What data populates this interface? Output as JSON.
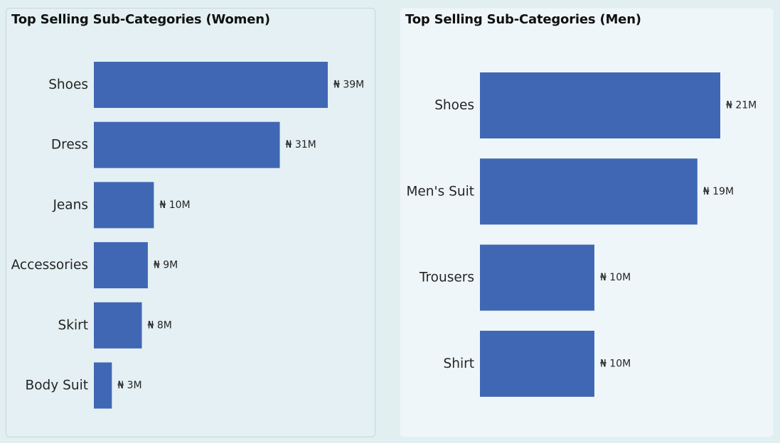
{
  "chart_data": [
    {
      "type": "bar",
      "orientation": "horizontal",
      "title": "Top Selling Sub-Categories (Women)",
      "categories": [
        "Shoes",
        "Dress",
        "Jeans",
        "Accessories",
        "Skirt",
        "Body Suit"
      ],
      "values": [
        39,
        31,
        10,
        9,
        8,
        3
      ],
      "value_labels": [
        "₦ 39M",
        "₦ 31M",
        "₦ 10M",
        "₦ 9M",
        "₦ 8M",
        "₦ 3M"
      ],
      "value_unit": "₦ M",
      "bar_color": "#3f67b3",
      "grid": false,
      "legend": "none"
    },
    {
      "type": "bar",
      "orientation": "horizontal",
      "title": "Top Selling Sub-Categories (Men)",
      "categories": [
        "Shoes",
        "Men's Suit",
        "Trousers",
        "Shirt"
      ],
      "values": [
        21,
        19,
        10,
        10
      ],
      "value_labels": [
        "₦ 21M",
        "₦ 19M",
        "₦ 10M",
        "₦ 10M"
      ],
      "value_unit": "₦ M",
      "bar_color": "#3f67b3",
      "grid": false,
      "legend": "none"
    }
  ]
}
